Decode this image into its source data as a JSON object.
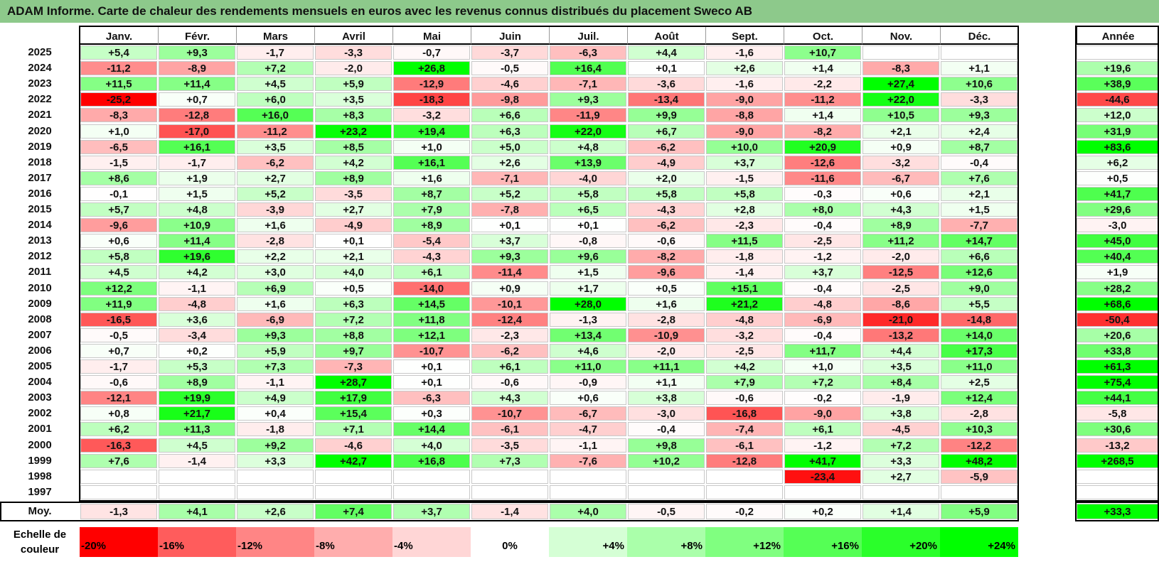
{
  "title": "ADAM Informe. Carte de chaleur des rendements mensuels en euros avec les revenus connus distribués du placement Sweco AB",
  "chart_data": {
    "type": "heatmap",
    "title": "ADAM Informe. Carte de chaleur des rendements mensuels en euros avec les revenus connus distribués du placement Sweco AB",
    "columns": [
      "Janv.",
      "Févr.",
      "Mars",
      "Avril",
      "Mai",
      "Juin",
      "Juil.",
      "Août",
      "Sept.",
      "Oct.",
      "Nov.",
      "Déc."
    ],
    "year_column_label": "Année",
    "rows": [
      {
        "year": "2025",
        "values": [
          "+5,4",
          "+9,3",
          "-1,7",
          "-3,3",
          "-0,7",
          "-3,7",
          "-6,3",
          "+4,4",
          "-1,6",
          "+10,7",
          "",
          ""
        ],
        "total": ""
      },
      {
        "year": "2024",
        "values": [
          "-11,2",
          "-8,9",
          "+7,2",
          "-2,0",
          "+26,8",
          "-0,5",
          "+16,4",
          "+0,1",
          "+2,6",
          "+1,4",
          "-8,3",
          "+1,1"
        ],
        "total": "+19,6"
      },
      {
        "year": "2023",
        "values": [
          "+11,5",
          "+11,4",
          "+4,5",
          "+5,9",
          "-12,9",
          "-4,6",
          "-7,1",
          "-3,6",
          "-1,6",
          "-2,2",
          "+27,4",
          "+10,6"
        ],
        "total": "+38,9"
      },
      {
        "year": "2022",
        "values": [
          "-25,2",
          "+0,7",
          "+6,0",
          "+3,5",
          "-18,3",
          "-9,8",
          "+9,3",
          "-13,4",
          "-9,0",
          "-11,2",
          "+22,0",
          "-3,3"
        ],
        "total": "-44,6"
      },
      {
        "year": "2021",
        "values": [
          "-8,3",
          "-12,8",
          "+16,0",
          "+8,3",
          "-3,2",
          "+6,6",
          "-11,9",
          "+9,9",
          "-8,8",
          "+1,4",
          "+10,5",
          "+9,3"
        ],
        "total": "+12,0"
      },
      {
        "year": "2020",
        "values": [
          "+1,0",
          "-17,0",
          "-11,2",
          "+23,2",
          "+19,4",
          "+6,3",
          "+22,0",
          "+6,7",
          "-9,0",
          "-8,2",
          "+2,1",
          "+2,4"
        ],
        "total": "+31,9"
      },
      {
        "year": "2019",
        "values": [
          "-6,5",
          "+16,1",
          "+3,5",
          "+8,5",
          "+1,0",
          "+5,0",
          "+4,8",
          "-6,2",
          "+10,0",
          "+20,9",
          "+0,9",
          "+8,7"
        ],
        "total": "+83,6"
      },
      {
        "year": "2018",
        "values": [
          "-1,5",
          "-1,7",
          "-6,2",
          "+4,2",
          "+16,1",
          "+2,6",
          "+13,9",
          "-4,9",
          "+3,7",
          "-12,6",
          "-3,2",
          "-0,4"
        ],
        "total": "+6,2"
      },
      {
        "year": "2017",
        "values": [
          "+8,6",
          "+1,9",
          "+2,7",
          "+8,9",
          "+1,6",
          "-7,1",
          "-4,0",
          "+2,0",
          "-1,5",
          "-11,6",
          "-6,7",
          "+7,6"
        ],
        "total": "+0,5"
      },
      {
        "year": "2016",
        "values": [
          "-0,1",
          "+1,5",
          "+5,2",
          "-3,5",
          "+8,7",
          "+5,2",
          "+5,8",
          "+5,8",
          "+5,8",
          "-0,3",
          "+0,6",
          "+2,1"
        ],
        "total": "+41,7"
      },
      {
        "year": "2015",
        "values": [
          "+5,7",
          "+4,8",
          "-3,9",
          "+2,7",
          "+7,9",
          "-7,8",
          "+6,5",
          "-4,3",
          "+2,8",
          "+8,0",
          "+4,3",
          "+1,5"
        ],
        "total": "+29,6"
      },
      {
        "year": "2014",
        "values": [
          "-9,6",
          "+10,9",
          "+1,6",
          "-4,9",
          "+8,9",
          "+0,1",
          "+0,1",
          "-6,2",
          "-2,3",
          "-0,4",
          "+8,9",
          "-7,7"
        ],
        "total": "-3,0"
      },
      {
        "year": "2013",
        "values": [
          "+0,6",
          "+11,4",
          "-2,8",
          "+0,1",
          "-5,4",
          "+3,7",
          "-0,8",
          "-0,6",
          "+11,5",
          "-2,5",
          "+11,2",
          "+14,7"
        ],
        "total": "+45,0"
      },
      {
        "year": "2012",
        "values": [
          "+5,8",
          "+19,6",
          "+2,2",
          "+2,1",
          "-4,3",
          "+9,3",
          "+9,6",
          "-8,2",
          "-1,8",
          "-1,2",
          "-2,0",
          "+6,6"
        ],
        "total": "+40,4"
      },
      {
        "year": "2011",
        "values": [
          "+4,5",
          "+4,2",
          "+3,0",
          "+4,0",
          "+6,1",
          "-11,4",
          "+1,5",
          "-9,6",
          "-1,4",
          "+3,7",
          "-12,5",
          "+12,6"
        ],
        "total": "+1,9"
      },
      {
        "year": "2010",
        "values": [
          "+12,2",
          "-1,1",
          "+6,9",
          "+0,5",
          "-14,0",
          "+0,9",
          "+1,7",
          "+0,5",
          "+15,1",
          "-0,4",
          "-2,5",
          "+9,0"
        ],
        "total": "+28,2"
      },
      {
        "year": "2009",
        "values": [
          "+11,9",
          "-4,8",
          "+1,6",
          "+6,3",
          "+14,5",
          "-10,1",
          "+28,0",
          "+1,6",
          "+21,2",
          "-4,8",
          "-8,6",
          "+5,5"
        ],
        "total": "+68,6"
      },
      {
        "year": "2008",
        "values": [
          "-16,5",
          "+3,6",
          "-6,9",
          "+7,2",
          "+11,8",
          "-12,4",
          "-1,3",
          "-2,8",
          "-4,8",
          "-6,9",
          "-21,0",
          "-14,8"
        ],
        "total": "-50,4"
      },
      {
        "year": "2007",
        "values": [
          "-0,5",
          "-3,4",
          "+9,3",
          "+8,8",
          "+12,1",
          "-2,3",
          "+13,4",
          "-10,9",
          "-3,2",
          "-0,4",
          "-13,2",
          "+14,0"
        ],
        "total": "+20,6"
      },
      {
        "year": "2006",
        "values": [
          "+0,7",
          "+0,2",
          "+5,9",
          "+9,7",
          "-10,7",
          "-6,2",
          "+4,6",
          "-2,0",
          "-2,5",
          "+11,7",
          "+4,4",
          "+17,3"
        ],
        "total": "+33,8"
      },
      {
        "year": "2005",
        "values": [
          "-1,7",
          "+5,3",
          "+7,3",
          "-7,3",
          "+0,1",
          "+6,1",
          "+11,0",
          "+11,1",
          "+4,2",
          "+1,0",
          "+3,5",
          "+11,0"
        ],
        "total": "+61,3"
      },
      {
        "year": "2004",
        "values": [
          "-0,6",
          "+8,9",
          "-1,1",
          "+28,7",
          "+0,1",
          "-0,6",
          "-0,9",
          "+1,1",
          "+7,9",
          "+7,2",
          "+8,4",
          "+2,5"
        ],
        "total": "+75,4"
      },
      {
        "year": "2003",
        "values": [
          "-12,1",
          "+19,9",
          "+4,9",
          "+17,9",
          "-6,3",
          "+4,3",
          "+0,6",
          "+3,8",
          "-0,6",
          "-0,2",
          "-1,9",
          "+12,4"
        ],
        "total": "+44,1"
      },
      {
        "year": "2002",
        "values": [
          "+0,8",
          "+21,7",
          "+0,4",
          "+15,4",
          "+0,3",
          "-10,7",
          "-6,7",
          "-3,0",
          "-16,8",
          "-9,0",
          "+3,8",
          "-2,8"
        ],
        "total": "-5,8"
      },
      {
        "year": "2001",
        "values": [
          "+6,2",
          "+11,3",
          "-1,8",
          "+7,1",
          "+14,4",
          "-6,1",
          "-4,7",
          "-0,4",
          "-7,4",
          "+6,1",
          "-4,5",
          "+10,3"
        ],
        "total": "+30,6"
      },
      {
        "year": "2000",
        "values": [
          "-16,3",
          "+4,5",
          "+9,2",
          "-4,6",
          "+4,0",
          "-3,5",
          "-1,1",
          "+9,8",
          "-6,1",
          "-1,2",
          "+7,2",
          "-12,2"
        ],
        "total": "-13,2"
      },
      {
        "year": "1999",
        "values": [
          "+7,6",
          "-1,4",
          "+3,3",
          "+42,7",
          "+16,8",
          "+7,3",
          "-7,6",
          "+10,2",
          "-12,8",
          "+41,7",
          "+3,3",
          "+48,2"
        ],
        "total": "+268,5"
      },
      {
        "year": "1998",
        "values": [
          "",
          "",
          "",
          "",
          "",
          "",
          "",
          "",
          "",
          "-23,4",
          "+2,7",
          "-5,9"
        ],
        "total": ""
      },
      {
        "year": "1997",
        "values": [
          "",
          "",
          "",
          "",
          "",
          "",
          "",
          "",
          "",
          "",
          "",
          ""
        ],
        "total": ""
      }
    ],
    "average": {
      "label": "Moy.",
      "values": [
        "-1,3",
        "+4,1",
        "+2,6",
        "+7,4",
        "+3,7",
        "-1,4",
        "+4,0",
        "-0,5",
        "-0,2",
        "+0,2",
        "+1,4",
        "+5,9"
      ],
      "total": "+33,3"
    },
    "color_scale": {
      "label": "Echelle de couleur",
      "stops": [
        {
          "label": "-20%",
          "value": -20
        },
        {
          "label": "-16%",
          "value": -16
        },
        {
          "label": "-12%",
          "value": -12
        },
        {
          "label": "-8%",
          "value": -8
        },
        {
          "label": "-4%",
          "value": -4
        },
        {
          "label": "0%",
          "value": 0
        },
        {
          "label": "+4%",
          "value": 4
        },
        {
          "label": "+8%",
          "value": 8
        },
        {
          "label": "+12%",
          "value": 12
        },
        {
          "label": "+16%",
          "value": 16
        },
        {
          "label": "+20%",
          "value": 20
        },
        {
          "label": "+24%",
          "value": 24
        }
      ]
    },
    "colors": {
      "negative": "#ff0000",
      "neutral": "#ffffff",
      "positive": "#00ff00",
      "title_bar": "#8dc98b"
    }
  }
}
